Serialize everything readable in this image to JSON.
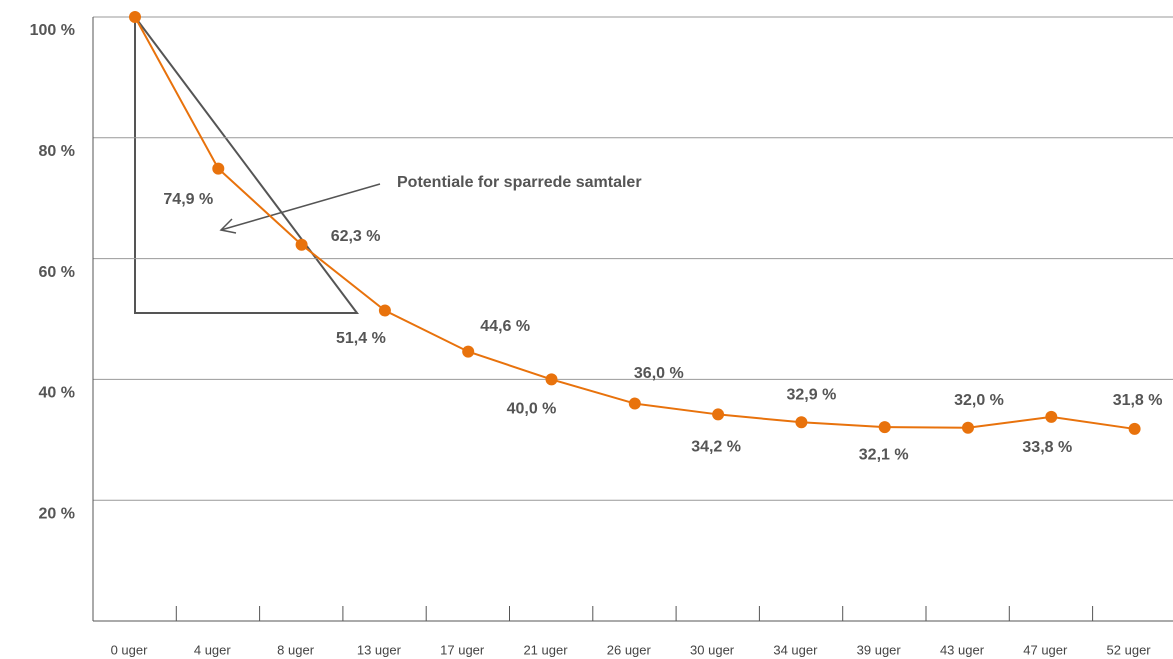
{
  "chart_data": {
    "type": "line",
    "categories": [
      "0 uger",
      "4 uger",
      "8 uger",
      "13 uger",
      "17 uger",
      "21 uger",
      "26 uger",
      "30 uger",
      "34 uger",
      "39 uger",
      "43 uger",
      "47 uger",
      "52 uger"
    ],
    "series": [
      {
        "color": "#e8720c",
        "values": [
          100,
          74.9,
          62.3,
          51.4,
          44.6,
          40.0,
          36.0,
          34.2,
          32.9,
          32.1,
          32.0,
          33.8,
          31.8
        ],
        "value_labels": [
          null,
          "74,9 %",
          "62,3 %",
          "51,4 %",
          "44,6 %",
          "40,0 %",
          "36,0 %",
          "34,2 %",
          "32,9 %",
          "32,1 %",
          "32,0 %",
          "33,8 %",
          "31,8 %"
        ]
      }
    ],
    "ylim": [
      0,
      100
    ],
    "yticks": [
      {
        "value": 20,
        "label": "20 %"
      },
      {
        "value": 40,
        "label": "40 %"
      },
      {
        "value": 60,
        "label": "60 %"
      },
      {
        "value": 80,
        "label": "80 %"
      },
      {
        "value": 100,
        "label": "100 %"
      }
    ],
    "grid": true,
    "annotation": "Potentiale for sparrede samtaler"
  }
}
